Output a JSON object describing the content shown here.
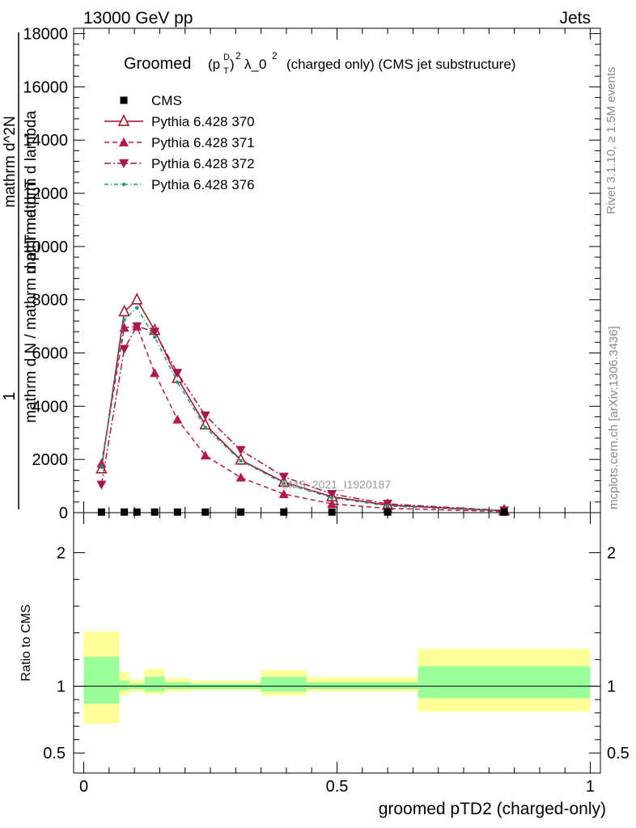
{
  "header": {
    "left": "13000 GeV pp",
    "right": "Jets"
  },
  "title": {
    "prefix": "Groomed",
    "pt_base": "(p",
    "pt_sup": "D",
    "pt_sub": "T",
    "pt_close": ")",
    "pt_exp": "2",
    "lambda": "λ_0",
    "lambda_exp": "2",
    "suffix": "(charged only) (CMS jet substructure)"
  },
  "side_labels": {
    "rivet": "Rivet 3.1.10, ≥ 1.5M events",
    "mcplots": "mcplots.cern.ch [arXiv:1306.3436]"
  },
  "watermark": "CMS_2021_I1920187",
  "ylabel_main": {
    "one": "1",
    "numer": "mathrm d^2N",
    "denom": "mathrm d N / mathrm d p_T mathrm d lambda",
    "overlay": "mathrm d p_T"
  },
  "ylabel_ratio": "Ratio to CMS",
  "xlabel": "groomed pTD2 (charged-only)",
  "colors": {
    "cms": "#000000",
    "p370": "#a00f1f",
    "p371": "#b8174b",
    "p372": "#a8164a",
    "p376": "#1a9a7a",
    "band_inner": "#99ff99",
    "band_outer": "#ffff99"
  },
  "chart_data": [
    {
      "type": "line",
      "title": "Groomed (p_T^D)^2 λ_0^2 (charged only) (CMS jet substructure)",
      "xlabel": "groomed pTD2 (charged-only)",
      "xlim": [
        -0.02,
        1.02
      ],
      "ylim": [
        0,
        18200
      ],
      "y_ticks": [
        0,
        2000,
        4000,
        6000,
        8000,
        10000,
        12000,
        14000,
        16000,
        18000
      ],
      "y_tick_labels": [
        "0",
        "2000",
        "4000",
        "6000",
        "8000",
        "10000",
        "12000",
        "14000",
        "16000",
        "18000"
      ],
      "legend_position": "top-left",
      "x": [
        0.035,
        0.08,
        0.105,
        0.14,
        0.185,
        0.24,
        0.31,
        0.395,
        0.49,
        0.6,
        0.83
      ],
      "series": [
        {
          "name": "CMS",
          "marker": "square",
          "values": [
            22,
            22,
            22,
            22,
            22,
            22,
            22,
            22,
            22,
            22,
            22
          ]
        },
        {
          "name": "Pythia 6.428 370",
          "marker": "triangle-open",
          "values": [
            1650,
            7550,
            8000,
            6850,
            5050,
            3300,
            1980,
            1150,
            600,
            280,
            70
          ]
        },
        {
          "name": "Pythia 6.428 371",
          "marker": "triangle",
          "values": [
            1850,
            6950,
            7000,
            5250,
            3500,
            2150,
            1320,
            700,
            330,
            160,
            40
          ]
        },
        {
          "name": "Pythia 6.428 372",
          "marker": "triangle-down",
          "values": [
            1050,
            6150,
            7000,
            6800,
            5250,
            3650,
            2350,
            1350,
            700,
            330,
            80
          ]
        },
        {
          "name": "Pythia 6.428 376",
          "marker": "dot",
          "values": [
            1700,
            7250,
            7700,
            6600,
            4900,
            3200,
            1950,
            1100,
            560,
            250,
            60
          ]
        }
      ]
    },
    {
      "type": "area",
      "ylabel": "Ratio to CMS",
      "xlim": [
        -0.02,
        1.02
      ],
      "ylim": [
        0.35,
        2.3
      ],
      "y_ticks": [
        0.5,
        1,
        2
      ],
      "y_tick_labels": [
        "0.5",
        "1",
        "2"
      ],
      "x_ticks": [
        0,
        0.5,
        1
      ],
      "x_tick_labels": [
        "0",
        "0.5",
        "1"
      ],
      "bins": [
        {
          "lo": 0.0,
          "hi": 0.07,
          "inner": [
            0.87,
            1.22
          ],
          "outer": [
            0.72,
            1.41
          ]
        },
        {
          "lo": 0.07,
          "hi": 0.09,
          "inner": [
            0.97,
            1.04
          ],
          "outer": [
            0.93,
            1.11
          ]
        },
        {
          "lo": 0.09,
          "hi": 0.12,
          "inner": [
            0.98,
            1.02
          ],
          "outer": [
            0.96,
            1.05
          ]
        },
        {
          "lo": 0.12,
          "hi": 0.16,
          "inner": [
            0.96,
            1.07
          ],
          "outer": [
            0.94,
            1.13
          ]
        },
        {
          "lo": 0.16,
          "hi": 0.21,
          "inner": [
            0.98,
            1.03
          ],
          "outer": [
            0.96,
            1.06
          ]
        },
        {
          "lo": 0.21,
          "hi": 0.35,
          "inner": [
            0.98,
            1.02
          ],
          "outer": [
            0.97,
            1.04
          ]
        },
        {
          "lo": 0.35,
          "hi": 0.44,
          "inner": [
            0.96,
            1.07
          ],
          "outer": [
            0.93,
            1.12
          ]
        },
        {
          "lo": 0.44,
          "hi": 0.66,
          "inner": [
            0.98,
            1.03
          ],
          "outer": [
            0.96,
            1.07
          ]
        },
        {
          "lo": 0.66,
          "hi": 1.0,
          "inner": [
            0.91,
            1.15
          ],
          "outer": [
            0.81,
            1.28
          ]
        }
      ],
      "reference": 1
    }
  ]
}
